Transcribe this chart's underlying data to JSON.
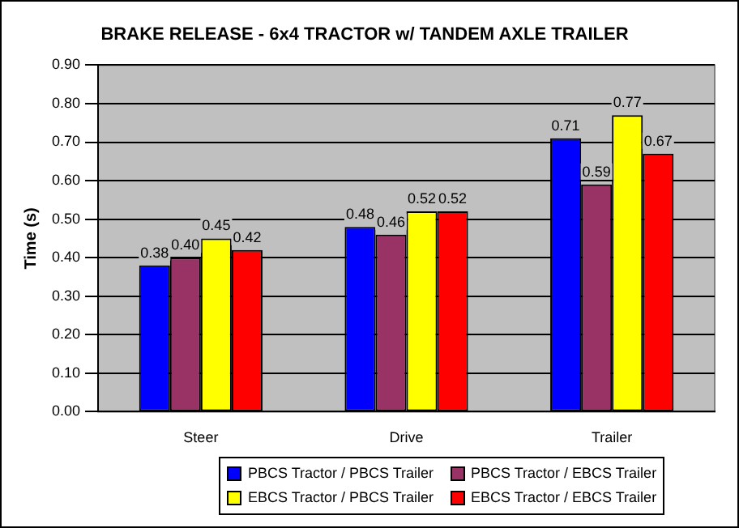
{
  "chart_data": {
    "type": "bar",
    "title": "BRAKE RELEASE - 6x4 TRACTOR w/ TANDEM AXLE TRAILER",
    "ylabel": "Time (s)",
    "categories": [
      "Steer",
      "Drive",
      "Trailer"
    ],
    "series": [
      {
        "name": "PBCS Tractor / PBCS Trailer",
        "color": "#0000ff",
        "values": [
          0.38,
          0.48,
          0.71
        ],
        "value_labels": [
          "0.38",
          "0.48",
          "0.71"
        ]
      },
      {
        "name": "PBCS Tractor / EBCS Trailer",
        "color": "#993366",
        "values": [
          0.4,
          0.46,
          0.59
        ],
        "value_labels": [
          "0.40",
          "0.46",
          "0.59"
        ]
      },
      {
        "name": "EBCS Tractor / PBCS Trailer",
        "color": "#ffff00",
        "values": [
          0.45,
          0.52,
          0.77
        ],
        "value_labels": [
          "0.45",
          "0.52",
          "0.77"
        ]
      },
      {
        "name": "EBCS Tractor / EBCS Trailer",
        "color": "#ff0000",
        "values": [
          0.42,
          0.52,
          0.67
        ],
        "value_labels": [
          "0.42",
          "0.52",
          "0.67"
        ]
      }
    ],
    "ylim": [
      0,
      0.9
    ],
    "yticks": [
      {
        "value": 0,
        "label": "0.00"
      },
      {
        "value": 0.1,
        "label": "0.10"
      },
      {
        "value": 0.2,
        "label": "0.20"
      },
      {
        "value": 0.3,
        "label": "0.30"
      },
      {
        "value": 0.4,
        "label": "0.40"
      },
      {
        "value": 0.5,
        "label": "0.50"
      },
      {
        "value": 0.6,
        "label": "0.60"
      },
      {
        "value": 0.7,
        "label": "0.70"
      },
      {
        "value": 0.8,
        "label": "0.80"
      },
      {
        "value": 0.9,
        "label": "0.90"
      }
    ],
    "grid": "y",
    "legend": "bottom"
  }
}
